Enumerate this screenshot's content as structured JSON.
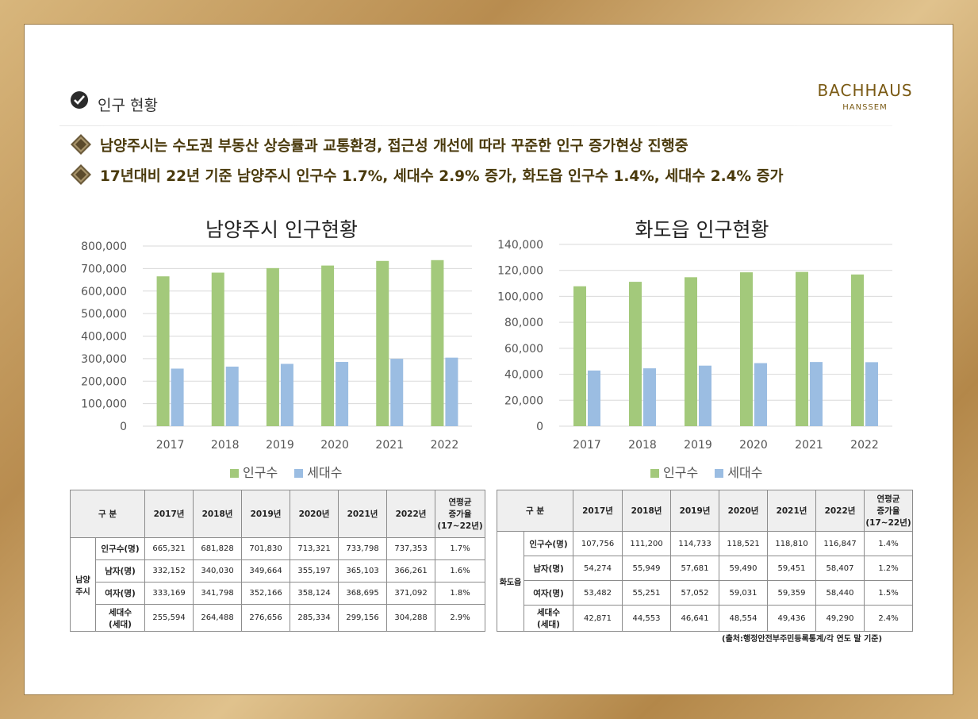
{
  "section": {
    "title": "인구 현황"
  },
  "brand": {
    "name": "BACHHAUS",
    "sub": "HANSSEM"
  },
  "bullets": [
    "남양주시는 수도권 부동산 상승률과 교통환경, 접근성 개선에 따라 꾸준한 인구 증가현상 진행중",
    "17년대비 22년 기준 남양주시 인구수 1.7%, 세대수 2.9% 증가, 화도읍 인구수 1.4%, 세대수 2.4% 증가"
  ],
  "colors": {
    "population": "#a3c97b",
    "households": "#9bbde2",
    "accent": "#4a3a0c"
  },
  "chart_data": [
    {
      "type": "bar",
      "title": "남양주시 인구현황",
      "categories": [
        "2017",
        "2018",
        "2019",
        "2020",
        "2021",
        "2022"
      ],
      "series": [
        {
          "name": "인구수",
          "values": [
            665321,
            681828,
            701830,
            713321,
            733798,
            737353
          ]
        },
        {
          "name": "세대수",
          "values": [
            255594,
            264488,
            276656,
            285334,
            299156,
            304288
          ]
        }
      ],
      "ylim": [
        0,
        800000
      ],
      "yticks": [
        "0",
        "100,000",
        "200,000",
        "300,000",
        "400,000",
        "500,000",
        "600,000",
        "700,000",
        "800,000"
      ],
      "grid": true,
      "legend": "bottom"
    },
    {
      "type": "bar",
      "title": "화도읍 인구현황",
      "categories": [
        "2017",
        "2018",
        "2019",
        "2020",
        "2021",
        "2022"
      ],
      "series": [
        {
          "name": "인구수",
          "values": [
            107756,
            111200,
            114733,
            118521,
            118810,
            116847
          ]
        },
        {
          "name": "세대수",
          "values": [
            42871,
            44553,
            46641,
            48554,
            49436,
            49290
          ]
        }
      ],
      "ylim": [
        0,
        140000
      ],
      "yticks": [
        "0",
        "20,000",
        "40,000",
        "60,000",
        "80,000",
        "100,000",
        "120,000",
        "140,000"
      ],
      "grid": true,
      "legend": "bottom"
    }
  ],
  "tables": [
    {
      "header": {
        "label": "구 분",
        "years": [
          "2017년",
          "2018년",
          "2019년",
          "2020년",
          "2021년",
          "2022년"
        ],
        "rate": [
          "연평균",
          "증가율",
          "(17~22년)"
        ]
      },
      "group": [
        "남양",
        "주시"
      ],
      "rows": [
        {
          "label": [
            "인구수(명)"
          ],
          "values": [
            "665,321",
            "681,828",
            "701,830",
            "713,321",
            "733,798",
            "737,353"
          ],
          "rate": "1.7%"
        },
        {
          "label": [
            "남자(명)"
          ],
          "values": [
            "332,152",
            "340,030",
            "349,664",
            "355,197",
            "365,103",
            "366,261"
          ],
          "rate": "1.6%"
        },
        {
          "label": [
            "여자(명)"
          ],
          "values": [
            "333,169",
            "341,798",
            "352,166",
            "358,124",
            "368,695",
            "371,092"
          ],
          "rate": "1.8%"
        },
        {
          "label": [
            "세대수",
            "(세대)"
          ],
          "values": [
            "255,594",
            "264,488",
            "276,656",
            "285,334",
            "299,156",
            "304,288"
          ],
          "rate": "2.9%"
        }
      ]
    },
    {
      "header": {
        "label": "구 분",
        "years": [
          "2017년",
          "2018년",
          "2019년",
          "2020년",
          "2021년",
          "2022년"
        ],
        "rate": [
          "연평균",
          "증가율",
          "(17~22년)"
        ]
      },
      "group": [
        "화도읍"
      ],
      "rows": [
        {
          "label": [
            "인구수(명)"
          ],
          "values": [
            "107,756",
            "111,200",
            "114,733",
            "118,521",
            "118,810",
            "116,847"
          ],
          "rate": "1.4%"
        },
        {
          "label": [
            "남자(명)"
          ],
          "values": [
            "54,274",
            "55,949",
            "57,681",
            "59,490",
            "59,451",
            "58,407"
          ],
          "rate": "1.2%"
        },
        {
          "label": [
            "여자(명)"
          ],
          "values": [
            "53,482",
            "55,251",
            "57,052",
            "59,031",
            "59,359",
            "58,440"
          ],
          "rate": "1.5%"
        },
        {
          "label": [
            "세대수",
            "(세대)"
          ],
          "values": [
            "42,871",
            "44,553",
            "46,641",
            "48,554",
            "49,436",
            "49,290"
          ],
          "rate": "2.4%"
        }
      ]
    }
  ],
  "source": "(출처:행정안전부주민등록통계/각 연도 말 기준)"
}
